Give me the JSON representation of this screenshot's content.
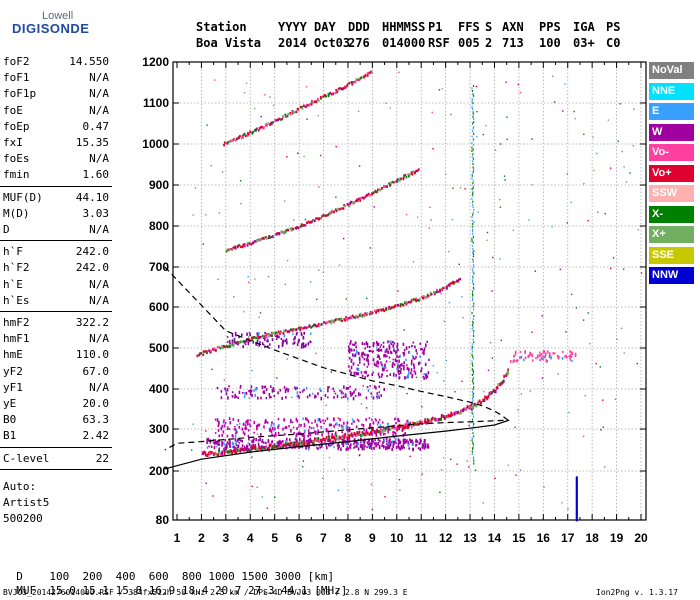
{
  "logo": {
    "line1": "Lowell",
    "line2": "DIGISONDE"
  },
  "header": {
    "row1": [
      "Station",
      "YYYY",
      "DAY",
      "DDD",
      "HHMMSS",
      "P1",
      "FFS",
      "S",
      "AXN",
      "PPS",
      "IGA",
      "PS"
    ],
    "row2": [
      "Boa Vista",
      "2014",
      "Oct03",
      "276",
      "014000",
      "RSF",
      "005",
      "2",
      "713",
      "100",
      "03+",
      "C0"
    ]
  },
  "params": [
    {
      "k": "foF2",
      "v": "14.550"
    },
    {
      "k": "foF1",
      "v": "N/A"
    },
    {
      "k": "foF1p",
      "v": "N/A"
    },
    {
      "k": "foE",
      "v": "N/A"
    },
    {
      "k": "foEp",
      "v": "0.47"
    },
    {
      "k": "fxI",
      "v": "15.35"
    },
    {
      "k": "foEs",
      "v": "N/A"
    },
    {
      "k": "fmin",
      "v": "1.60"
    },
    {
      "k": "MUF(D)",
      "v": "44.10"
    },
    {
      "k": "M(D)",
      "v": "3.03"
    },
    {
      "k": "D",
      "v": "N/A"
    },
    {
      "k": "h`F",
      "v": "242.0"
    },
    {
      "k": "h`F2",
      "v": "242.0"
    },
    {
      "k": "h`E",
      "v": "N/A"
    },
    {
      "k": "h`Es",
      "v": "N/A"
    },
    {
      "k": "hmF2",
      "v": "322.2"
    },
    {
      "k": "hmF1",
      "v": "N/A"
    },
    {
      "k": "hmE",
      "v": "110.0"
    },
    {
      "k": "yF2",
      "v": "67.0"
    },
    {
      "k": "yF1",
      "v": "N/A"
    },
    {
      "k": "yE",
      "v": "20.0"
    },
    {
      "k": "B0",
      "v": "63.3"
    },
    {
      "k": "B1",
      "v": "2.42"
    },
    {
      "k": "C-level",
      "v": "22"
    }
  ],
  "autoscale": {
    "label": "Auto:",
    "name": "Artist5",
    "code": "500200"
  },
  "legend": [
    {
      "label": "NoVal",
      "bg": "#808080",
      "fg": "#ffffff"
    },
    {
      "label": "NNE",
      "bg": "#00e0ff",
      "fg": "#ffffff"
    },
    {
      "label": "E",
      "bg": "#3aa0ff",
      "fg": "#ffffff"
    },
    {
      "label": "W",
      "bg": "#a000a0",
      "fg": "#ffffff"
    },
    {
      "label": "Vo-",
      "bg": "#ff40a0",
      "fg": "#ffffff"
    },
    {
      "label": "Vo+",
      "bg": "#e00030",
      "fg": "#ffffff"
    },
    {
      "label": "SSW",
      "bg": "#ffb0b0",
      "fg": "#ffffff"
    },
    {
      "label": "X-",
      "bg": "#008000",
      "fg": "#ffffff"
    },
    {
      "label": "X+",
      "bg": "#70b060",
      "fg": "#ffffff"
    },
    {
      "label": "SSE",
      "bg": "#c8c800",
      "fg": "#ffffff"
    },
    {
      "label": "NNW",
      "bg": "#0000d0",
      "fg": "#ffffff"
    }
  ],
  "footer": {
    "d_label": "D",
    "d_values": "100  200  400  600  800 1000 1500 3000 [km]",
    "muf_label": "MUF",
    "muf_values": "15.0 15.1 15.8 16.9 18.4 20.7 27.3 44.1 [MHz]",
    "file_line": "BVJ03_2014276014000.RSF / 384fx512h 50 kHz 2.5 km / DPS-4D BVJ03 003 / 2.8 N 299.3 E",
    "version": "Ion2Png v. 1.3.17"
  },
  "chart_data": {
    "type": "scatter",
    "x_ticks": [
      1,
      2,
      3,
      4,
      5,
      6,
      7,
      8,
      9,
      10,
      11,
      12,
      13,
      14,
      15,
      16,
      17,
      18,
      19,
      20
    ],
    "y_ticks": [
      80,
      200,
      300,
      400,
      500,
      600,
      700,
      800,
      900,
      1000,
      1100,
      1200
    ],
    "xlim": [
      0.5,
      20.2
    ],
    "ylim": [
      80,
      1200
    ],
    "grid": true,
    "series": [
      {
        "color": "#e00030",
        "x": [
          2.0,
          3.0,
          4.0,
          5.0,
          6.0,
          7.0,
          8.0,
          9.0,
          10.0,
          11.0,
          12.0,
          13.0,
          13.5,
          14.0,
          14.3,
          14.5,
          14.55
        ],
        "y": [
          242,
          246,
          252,
          260,
          268,
          276,
          285,
          295,
          305,
          318,
          333,
          355,
          372,
          398,
          420,
          440,
          450
        ]
      },
      {
        "color": "#e00030",
        "x": [
          1.8,
          3.0,
          4.0,
          5.0,
          6.0,
          7.0,
          8.0,
          9.0,
          10.0,
          11.0,
          12.0,
          12.6
        ],
        "y": [
          484,
          505,
          522,
          535,
          548,
          561,
          573,
          587,
          603,
          623,
          650,
          672
        ]
      },
      {
        "color": "#e00030",
        "x": [
          3.0,
          4.0,
          5.0,
          6.0,
          7.0,
          8.0,
          9.0,
          10.0,
          10.9
        ],
        "y": [
          742,
          758,
          778,
          800,
          826,
          852,
          882,
          912,
          938
        ]
      },
      {
        "color": "#e00030",
        "x": [
          2.9,
          4.0,
          5.0,
          6.0,
          7.0,
          8.0,
          9.0
        ],
        "y": [
          1000,
          1028,
          1057,
          1087,
          1115,
          1145,
          1178
        ]
      }
    ],
    "profile_curve": {
      "x": [
        0.5,
        3,
        5,
        7,
        9,
        10,
        11,
        12,
        13,
        13.5,
        14,
        14.3,
        14.55,
        13.8,
        13,
        12,
        11,
        10,
        9,
        8,
        7,
        6,
        5,
        4,
        3,
        2,
        1,
        0.5
      ],
      "y": [
        700,
        542,
        495,
        452,
        420,
        408,
        394,
        381,
        367,
        358,
        345,
        334,
        322,
        320,
        318,
        316,
        313,
        308,
        303,
        298,
        293,
        288,
        284,
        280,
        275,
        270,
        266,
        250
      ]
    },
    "virtual_profile": {
      "x": [
        0.5,
        2,
        4,
        6,
        8,
        10,
        12,
        13,
        14,
        14.6
      ],
      "y": [
        205,
        228,
        245,
        258,
        270,
        283,
        295,
        302,
        310,
        322
      ]
    }
  }
}
